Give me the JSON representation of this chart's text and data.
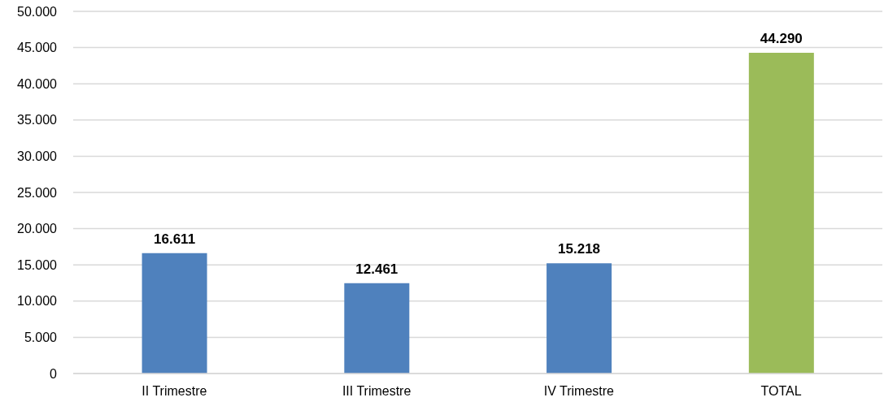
{
  "chart_data": {
    "type": "bar",
    "categories": [
      "II Trimestre",
      "III Trimestre",
      "IV Trimestre",
      "TOTAL"
    ],
    "values": [
      16611,
      12461,
      15218,
      44290
    ],
    "colors": [
      "#4f81bd",
      "#4f81bd",
      "#4f81bd",
      "#9bbb59"
    ],
    "value_labels": [
      "16.611",
      "12.461",
      "15.218",
      "44.290"
    ],
    "ylim": [
      0,
      50000
    ],
    "yticks": [
      {
        "value": 0,
        "label": "0"
      },
      {
        "value": 5000,
        "label": "5.000"
      },
      {
        "value": 10000,
        "label": "10.000"
      },
      {
        "value": 15000,
        "label": "15.000"
      },
      {
        "value": 20000,
        "label": "20.000"
      },
      {
        "value": 25000,
        "label": "25.000"
      },
      {
        "value": 30000,
        "label": "30.000"
      },
      {
        "value": 35000,
        "label": "35.000"
      },
      {
        "value": 40000,
        "label": "40.000"
      },
      {
        "value": 45000,
        "label": "45.000"
      },
      {
        "value": 50000,
        "label": "50.000"
      }
    ],
    "grid": "y",
    "legend": false
  }
}
